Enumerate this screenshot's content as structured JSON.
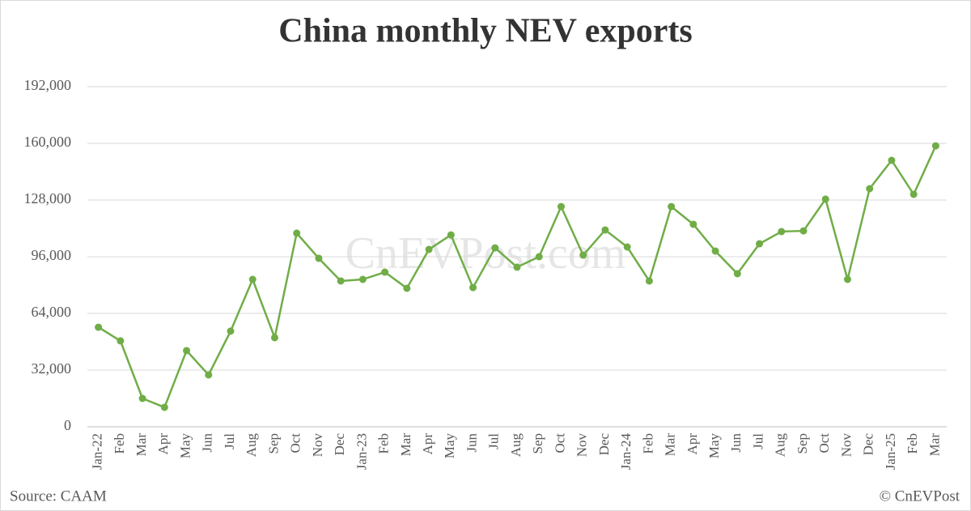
{
  "chart_data": {
    "type": "line",
    "title": "China monthly NEV exports",
    "watermark": "CnEVPost.com",
    "source": "Source: CAAM",
    "credit": "© CnEVPost",
    "categories": [
      "Jan-22",
      "Feb",
      "Mar",
      "Apr",
      "May",
      "Jun",
      "Jul",
      "Aug",
      "Sep",
      "Oct",
      "Nov",
      "Dec",
      "Jan-23",
      "Feb",
      "Mar",
      "Apr",
      "May",
      "Jun",
      "Jul",
      "Aug",
      "Sep",
      "Oct",
      "Nov",
      "Dec",
      "Jan-24",
      "Feb",
      "Mar",
      "Apr",
      "May",
      "Jun",
      "Jul",
      "Aug",
      "Sep",
      "Oct",
      "Nov",
      "Dec",
      "Jan-25",
      "Feb",
      "Mar"
    ],
    "values": [
      56200,
      48500,
      16000,
      11000,
      43000,
      29300,
      54000,
      83200,
      50300,
      109300,
      95100,
      82300,
      83200,
      87300,
      78200,
      100100,
      108300,
      78600,
      101000,
      90100,
      96000,
      124300,
      96900,
      111100,
      101500,
      82300,
      124300,
      114300,
      99200,
      86400,
      103300,
      110200,
      110600,
      128500,
      83200,
      134400,
      150400,
      131200,
      158600
    ],
    "color": "#70ad47",
    "ylim": [
      0,
      192000
    ],
    "yticks": [
      0,
      {
        "value": 32000,
        "label": "32,000"
      },
      {
        "value": 64000,
        "label": "64,000"
      },
      {
        "value": 96000,
        "label": "96,000"
      },
      {
        "value": 128000,
        "label": "128,000"
      },
      {
        "value": 160000,
        "label": "160,000"
      },
      {
        "value": 192000,
        "label": "192,000"
      }
    ],
    "grid": true
  }
}
